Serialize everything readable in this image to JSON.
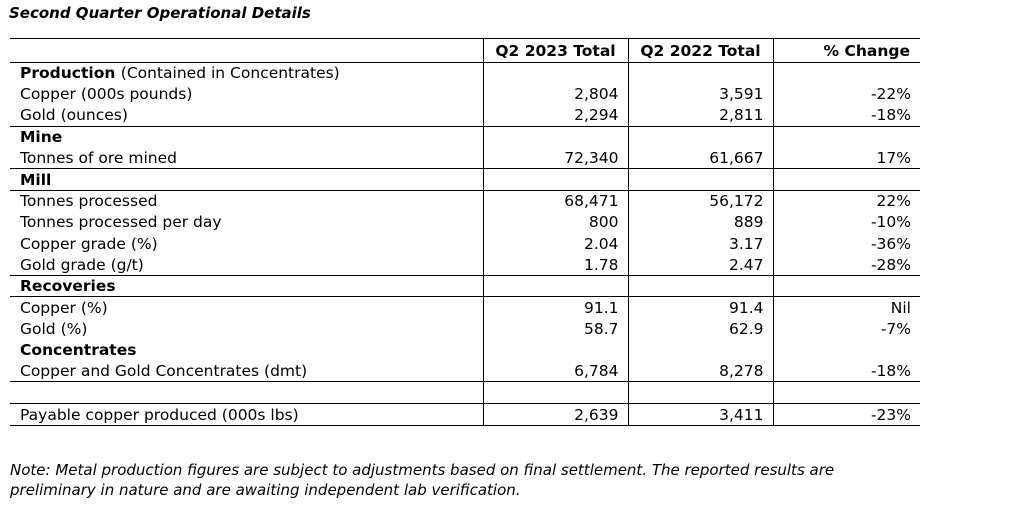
{
  "title": "Second Quarter Operational Details",
  "columns": [
    "",
    "Q2 2023 Total",
    "Q2 2022 Total",
    "% Change"
  ],
  "sections": {
    "production": {
      "label": "Production",
      "sublabel": "(Contained in Concentrates)",
      "rows": [
        {
          "label": "Copper (000s pounds)",
          "q2_2023": "2,804",
          "q2_2022": "3,591",
          "change": "-22%"
        },
        {
          "label": "Gold (ounces)",
          "q2_2023": "2,294",
          "q2_2022": "2,811",
          "change": "-18%"
        }
      ]
    },
    "mine": {
      "label": "Mine",
      "rows": [
        {
          "label": "Tonnes of ore mined",
          "q2_2023": "72,340",
          "q2_2022": "61,667",
          "change": "17%"
        }
      ]
    },
    "mill": {
      "label": "Mill",
      "rows": [
        {
          "label": "Tonnes processed",
          "q2_2023": "68,471",
          "q2_2022": "56,172",
          "change": "22%"
        },
        {
          "label": "Tonnes processed per day",
          "q2_2023": "800",
          "q2_2022": "889",
          "change": "-10%"
        },
        {
          "label": "Copper grade (%)",
          "q2_2023": "2.04",
          "q2_2022": "3.17",
          "change": "-36%"
        },
        {
          "label": "Gold grade (g/t)",
          "q2_2023": "1.78",
          "q2_2022": "2.47",
          "change": "-28%"
        }
      ]
    },
    "recoveries": {
      "label": "Recoveries",
      "rows": [
        {
          "label": "Copper (%)",
          "q2_2023": "91.1",
          "q2_2022": "91.4",
          "change": "Nil"
        },
        {
          "label": "Gold (%)",
          "q2_2023": "58.7",
          "q2_2022": "62.9",
          "change": "-7%"
        }
      ]
    },
    "concentrates": {
      "label": "Concentrates",
      "rows": [
        {
          "label": "Copper and Gold Concentrates (dmt)",
          "q2_2023": "6,784",
          "q2_2022": "8,278",
          "change": "-18%"
        }
      ]
    }
  },
  "payable": {
    "label": "Payable copper produced (000s lbs)",
    "q2_2023": "2,639",
    "q2_2022": "3,411",
    "change": "-23%"
  },
  "note": "Note: Metal production figures are subject to adjustments based on final settlement. The reported results are preliminary in nature and are awaiting independent lab verification."
}
